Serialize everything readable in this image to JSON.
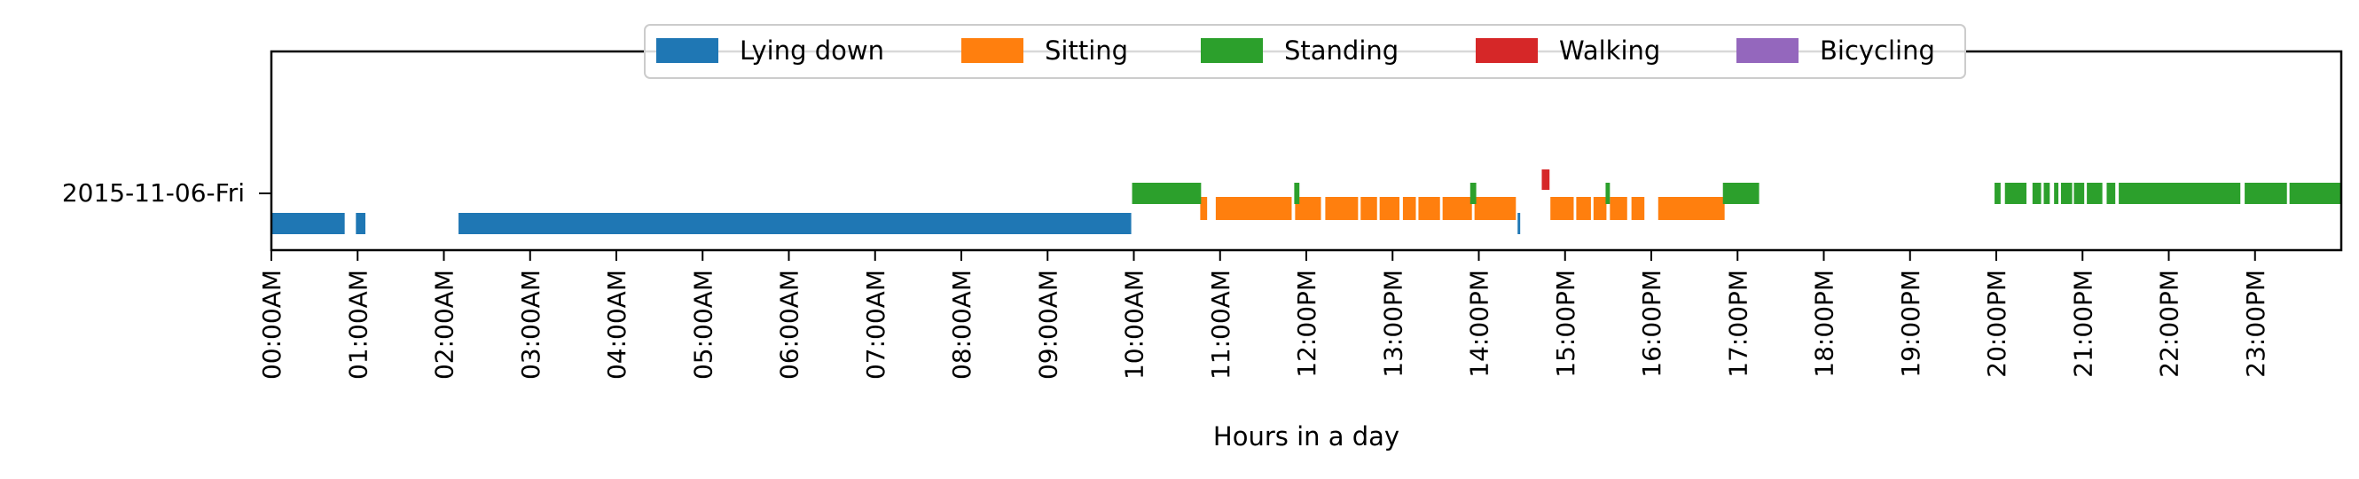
{
  "chart_data": {
    "type": "timeline",
    "title": "",
    "xlabel": "Hours in a day",
    "ylabel": "",
    "x_unit": "hours",
    "xlim": [
      0,
      24
    ],
    "x_ticks": [
      {
        "hour": 0,
        "label": "00:00AM"
      },
      {
        "hour": 1,
        "label": "01:00AM"
      },
      {
        "hour": 2,
        "label": "02:00AM"
      },
      {
        "hour": 3,
        "label": "03:00AM"
      },
      {
        "hour": 4,
        "label": "04:00AM"
      },
      {
        "hour": 5,
        "label": "05:00AM"
      },
      {
        "hour": 6,
        "label": "06:00AM"
      },
      {
        "hour": 7,
        "label": "07:00AM"
      },
      {
        "hour": 8,
        "label": "08:00AM"
      },
      {
        "hour": 9,
        "label": "09:00AM"
      },
      {
        "hour": 10,
        "label": "10:00AM"
      },
      {
        "hour": 11,
        "label": "11:00AM"
      },
      {
        "hour": 12,
        "label": "12:00PM"
      },
      {
        "hour": 13,
        "label": "13:00PM"
      },
      {
        "hour": 14,
        "label": "14:00PM"
      },
      {
        "hour": 15,
        "label": "15:00PM"
      },
      {
        "hour": 16,
        "label": "16:00PM"
      },
      {
        "hour": 17,
        "label": "17:00PM"
      },
      {
        "hour": 18,
        "label": "18:00PM"
      },
      {
        "hour": 19,
        "label": "19:00PM"
      },
      {
        "hour": 20,
        "label": "20:00PM"
      },
      {
        "hour": 21,
        "label": "21:00PM"
      },
      {
        "hour": 22,
        "label": "22:00PM"
      },
      {
        "hour": 23,
        "label": "23:00PM"
      }
    ],
    "rows": [
      "2015-11-06-Fri"
    ],
    "legend_position": "upper center",
    "grid": false,
    "series": [
      {
        "name": "Lying down",
        "color": "#1f77b4",
        "intervals": [
          [
            0.0,
            0.85
          ],
          [
            0.98,
            1.09
          ],
          [
            2.17,
            9.97
          ],
          [
            14.45,
            14.48
          ]
        ]
      },
      {
        "name": "Sitting",
        "color": "#ff7f0e",
        "intervals": [
          [
            10.77,
            10.85
          ],
          [
            10.95,
            11.83
          ],
          [
            11.87,
            12.17
          ],
          [
            12.22,
            12.6
          ],
          [
            12.63,
            12.82
          ],
          [
            12.85,
            13.08
          ],
          [
            13.12,
            13.27
          ],
          [
            13.3,
            13.55
          ],
          [
            13.58,
            13.92
          ],
          [
            13.95,
            14.43
          ],
          [
            14.83,
            15.1
          ],
          [
            15.13,
            15.3
          ],
          [
            15.33,
            15.48
          ],
          [
            15.52,
            15.72
          ],
          [
            15.77,
            15.92
          ],
          [
            16.08,
            16.85
          ]
        ]
      },
      {
        "name": "Standing",
        "color": "#2ca02c",
        "intervals": [
          [
            9.98,
            10.78
          ],
          [
            11.86,
            11.92
          ],
          [
            13.9,
            13.97
          ],
          [
            15.47,
            15.52
          ],
          [
            16.83,
            17.25
          ],
          [
            19.98,
            20.05
          ],
          [
            20.1,
            20.35
          ],
          [
            20.42,
            20.52
          ],
          [
            20.55,
            20.62
          ],
          [
            20.67,
            20.72
          ],
          [
            20.75,
            20.88
          ],
          [
            20.9,
            21.02
          ],
          [
            21.05,
            21.23
          ],
          [
            21.28,
            21.38
          ],
          [
            21.42,
            22.83
          ],
          [
            22.88,
            23.37
          ],
          [
            23.4,
            24.0
          ]
        ]
      },
      {
        "name": "Walking",
        "color": "#d62728",
        "intervals": [
          [
            14.73,
            14.82
          ]
        ]
      },
      {
        "name": "Bicycling",
        "color": "#9467bd",
        "intervals": []
      }
    ]
  }
}
